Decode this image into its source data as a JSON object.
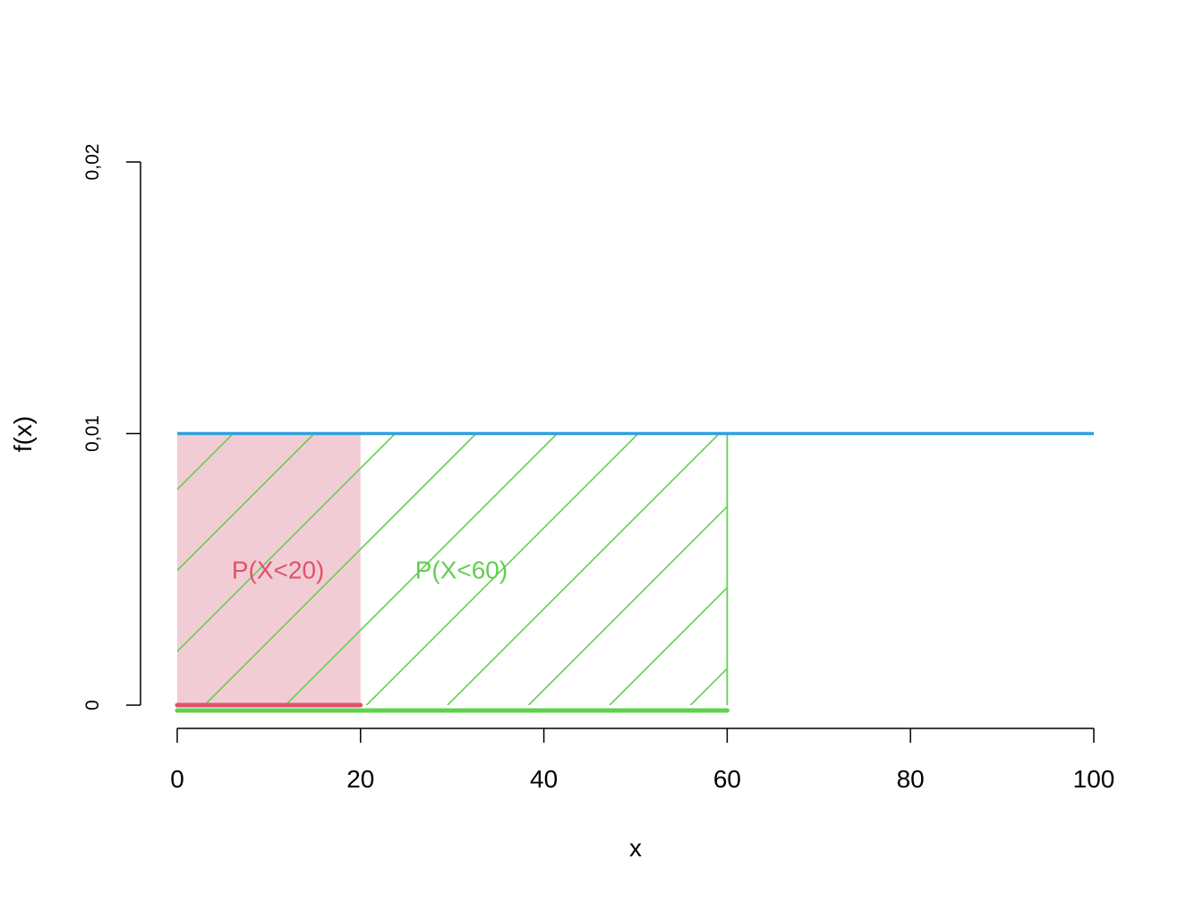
{
  "chart_data": {
    "type": "area",
    "title": "",
    "xlabel": "x",
    "ylabel": "f(x)",
    "xlim": [
      0,
      100
    ],
    "ylim": [
      0,
      0.02
    ],
    "x_ticks": [
      {
        "value": 0,
        "label": "0"
      },
      {
        "value": 20,
        "label": "20"
      },
      {
        "value": 40,
        "label": "40"
      },
      {
        "value": 60,
        "label": "60"
      },
      {
        "value": 80,
        "label": "80"
      },
      {
        "value": 100,
        "label": "100"
      }
    ],
    "y_ticks": [
      {
        "value": 0,
        "label": "0"
      },
      {
        "value": 0.01,
        "label": "0,01"
      },
      {
        "value": 0.02,
        "label": "0,02"
      }
    ],
    "density": {
      "x": [
        0,
        100
      ],
      "y": [
        0.01,
        0.01
      ],
      "color": "#2E9FDF"
    },
    "regions": [
      {
        "label": "P(X<20)",
        "from": 0,
        "to": 20,
        "height": 0.01,
        "fill": "solid",
        "color": "#DF536B",
        "fill_color": "#F2CCD4",
        "label_x": 11,
        "label_y": 0.005
      },
      {
        "label": "P(X<60)",
        "from": 0,
        "to": 60,
        "height": 0.01,
        "fill": "hatched",
        "color": "#61D04F",
        "label_x": 31,
        "label_y": 0.005
      }
    ],
    "grid": false,
    "legend": "none"
  }
}
